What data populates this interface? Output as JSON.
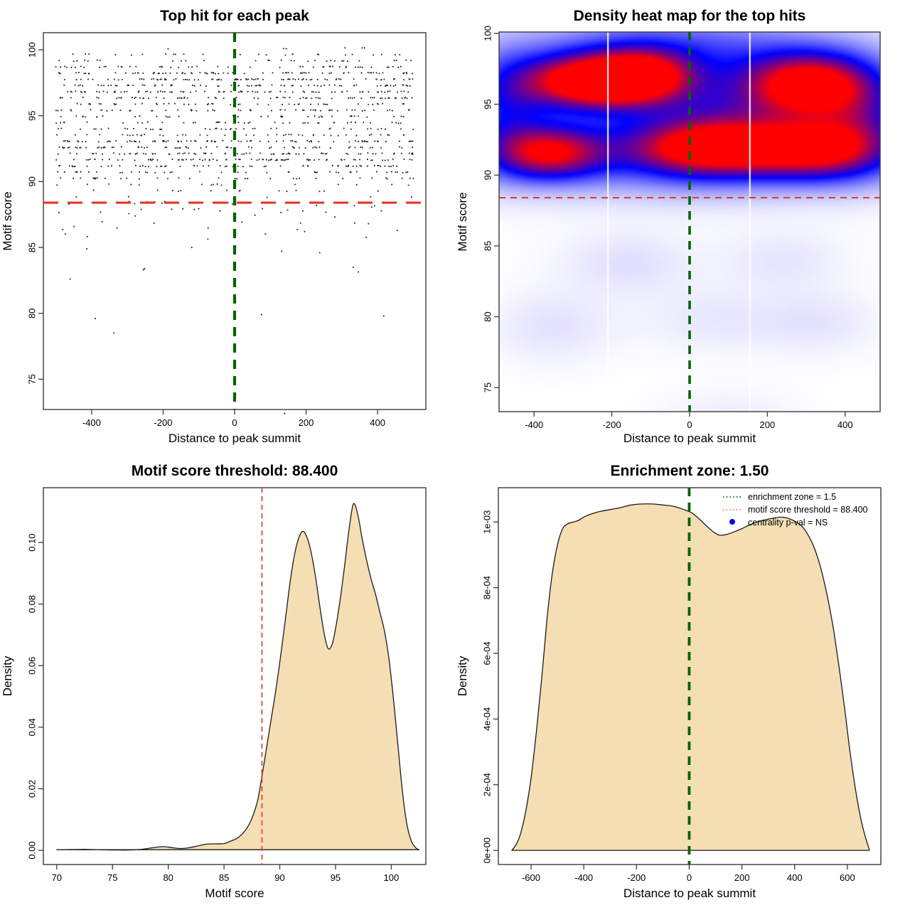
{
  "meta": {
    "background": "#ffffff"
  },
  "chart_data": [
    {
      "type": "scatter",
      "title": "Top hit for each peak",
      "xlabel": "Distance to peak summit",
      "ylabel": "Motif score",
      "x_domain": [
        -535,
        535
      ],
      "y_domain": [
        72.7,
        101.3
      ],
      "x_ticks": {
        "values": [
          -400,
          -200,
          0,
          200,
          400
        ],
        "labels": [
          "-400",
          "-200",
          "0",
          "200",
          "400"
        ]
      },
      "y_ticks": {
        "values": [
          75,
          80,
          85,
          90,
          95,
          100
        ],
        "labels": [
          "75",
          "80",
          "85",
          "90",
          "95",
          "100"
        ]
      },
      "point_color": "#141414",
      "threshold_line": {
        "orientation": "horizontal",
        "value": 88.4,
        "color": "#e8352b",
        "dash": [
          21,
          13
        ],
        "width": 3.2
      },
      "summit_line": {
        "orientation": "vertical",
        "value": 0,
        "color": "#006400",
        "dash": [
          13,
          10
        ],
        "width": 4.2
      },
      "points": {
        "seed": 1337421,
        "n_main": 1260,
        "x_range": [
          -500,
          500
        ],
        "mixture": {
          "weights": [
            0.46,
            0.54
          ],
          "means": [
            92.0,
            97.1
          ],
          "sds": [
            1.35,
            1.75
          ]
        },
        "score_range": [
          88.6,
          100.0
        ],
        "quantize_step": 0.47,
        "jitter": 0.045,
        "n_below_threshold": 55,
        "below_threshold_mean_drop": 1.1,
        "outliers": [
          [
            140,
            72.4
          ],
          [
            -338,
            78.5
          ],
          [
            -390,
            79.6
          ],
          [
            417,
            79.8
          ],
          [
            75,
            79.9
          ],
          [
            -460,
            82.6
          ],
          [
            238,
            84.6
          ],
          [
            332,
            83.5
          ],
          [
            -255,
            83.3
          ],
          [
            196,
            86.2
          ],
          [
            -120,
            85.0
          ],
          [
            455,
            86.3
          ]
        ]
      }
    },
    {
      "type": "heatmap",
      "title": "Density heat map for the top hits",
      "xlabel": "Distance to peak summit",
      "ylabel": "Motif score",
      "x_domain": [
        -490,
        490
      ],
      "y_domain": [
        73.3,
        100.1
      ],
      "x_ticks": {
        "values": [
          -400,
          -200,
          0,
          200,
          400
        ],
        "labels": [
          "-400",
          "-200",
          "0",
          "200",
          "400"
        ]
      },
      "y_ticks": {
        "values": [
          75,
          80,
          85,
          90,
          95,
          100
        ],
        "labels": [
          "75",
          "80",
          "85",
          "90",
          "95",
          "100"
        ]
      },
      "colormap": [
        "#ffffff",
        "#0000ff",
        "#ff0000"
      ],
      "white_lines": [
        -210,
        155
      ],
      "threshold_line": {
        "orientation": "horizontal",
        "value": 88.4,
        "color": "#e03530",
        "dash": [
          9,
          7
        ],
        "width": 2
      },
      "summit_line": {
        "orientation": "vertical",
        "value": 0,
        "color": "#006400",
        "dash": [
          12,
          9
        ],
        "width": 3.6
      },
      "blobs": [
        {
          "x": -250,
          "y": 96.6,
          "sx": 120,
          "sy": 1.25,
          "a": 1.05
        },
        {
          "x": -120,
          "y": 97.1,
          "sx": 85,
          "sy": 1.25,
          "a": 0.6
        },
        {
          "x": 305,
          "y": 96.4,
          "sx": 105,
          "sy": 1.45,
          "a": 0.95
        },
        {
          "x": 60,
          "y": 91.9,
          "sx": 140,
          "sy": 1.3,
          "a": 0.9
        },
        {
          "x": -360,
          "y": 91.6,
          "sx": 95,
          "sy": 1.25,
          "a": 0.8
        },
        {
          "x": 330,
          "y": 91.8,
          "sx": 115,
          "sy": 1.35,
          "a": 0.75
        },
        {
          "x": -60,
          "y": 96.3,
          "sx": 330,
          "sy": 2.0,
          "a": 0.3
        },
        {
          "x": 0,
          "y": 91.3,
          "sx": 380,
          "sy": 1.9,
          "a": 0.32
        },
        {
          "x": -30,
          "y": 99.2,
          "sx": 300,
          "sy": 1.7,
          "a": 0.25
        },
        {
          "x": 440,
          "y": 94.2,
          "sx": 90,
          "sy": 2.4,
          "a": 0.38
        },
        {
          "x": -470,
          "y": 94.5,
          "sx": 70,
          "sy": 2.6,
          "a": 0.3
        },
        {
          "x": 150,
          "y": 94.0,
          "sx": 180,
          "sy": 1.8,
          "a": 0.25
        },
        {
          "x": -160,
          "y": 83.8,
          "sx": 120,
          "sy": 1.6,
          "a": 0.06
        },
        {
          "x": 240,
          "y": 84.0,
          "sx": 110,
          "sy": 1.5,
          "a": 0.05
        },
        {
          "x": -350,
          "y": 79.3,
          "sx": 110,
          "sy": 1.8,
          "a": 0.055
        },
        {
          "x": 60,
          "y": 79.8,
          "sx": 130,
          "sy": 1.6,
          "a": 0.045
        },
        {
          "x": 330,
          "y": 79.6,
          "sx": 110,
          "sy": 1.6,
          "a": 0.05
        },
        {
          "x": 100,
          "y": 72.8,
          "sx": 120,
          "sy": 1.5,
          "a": 0.035
        }
      ]
    },
    {
      "type": "density",
      "title": "Motif score threshold: 88.400",
      "xlabel": "Motif score",
      "ylabel": "Density",
      "x_domain": [
        68.8,
        103.1
      ],
      "y_domain": [
        -0.0046,
        0.1178
      ],
      "x_ticks": {
        "values": [
          70,
          75,
          80,
          85,
          90,
          95,
          100
        ],
        "labels": [
          "70",
          "75",
          "80",
          "85",
          "90",
          "95",
          "100"
        ]
      },
      "y_ticks": {
        "values": [
          0,
          0.02,
          0.04,
          0.06,
          0.08,
          0.1
        ],
        "labels": [
          "0.00",
          "0.02",
          "0.04",
          "0.06",
          "0.08",
          "0.10"
        ]
      },
      "fill": "#f5deb3",
      "stroke": "#1a1a1a",
      "vline": {
        "value": 88.4,
        "color": "#d8493f",
        "dash": [
          7,
          5
        ],
        "width": 1.8
      },
      "curve": [
        [
          70,
          0.0002
        ],
        [
          71,
          0.00025
        ],
        [
          72,
          0.0003
        ],
        [
          72.5,
          0.00032
        ],
        [
          73.5,
          0.00022
        ],
        [
          75,
          0.00012
        ],
        [
          76.5,
          0.0001
        ],
        [
          77.5,
          0.0003
        ],
        [
          78.5,
          0.0008
        ],
        [
          79.5,
          0.0012
        ],
        [
          80.3,
          0.0009
        ],
        [
          81,
          0.0006
        ],
        [
          81.8,
          0.0008
        ],
        [
          82.6,
          0.0014
        ],
        [
          83.4,
          0.002
        ],
        [
          84.2,
          0.0021
        ],
        [
          85,
          0.0022
        ],
        [
          85.6,
          0.003
        ],
        [
          86.2,
          0.004
        ],
        [
          86.8,
          0.006
        ],
        [
          87.4,
          0.0095
        ],
        [
          88,
          0.016
        ],
        [
          88.4,
          0.024
        ],
        [
          88.8,
          0.033
        ],
        [
          89.2,
          0.042
        ],
        [
          89.6,
          0.051
        ],
        [
          90,
          0.061
        ],
        [
          90.5,
          0.075
        ],
        [
          91,
          0.089
        ],
        [
          91.5,
          0.099
        ],
        [
          92,
          0.1035
        ],
        [
          92.4,
          0.102
        ],
        [
          92.8,
          0.097
        ],
        [
          93.2,
          0.089
        ],
        [
          93.6,
          0.079
        ],
        [
          94,
          0.07
        ],
        [
          94.35,
          0.0655
        ],
        [
          94.7,
          0.067
        ],
        [
          95,
          0.072
        ],
        [
          95.4,
          0.081
        ],
        [
          95.8,
          0.092
        ],
        [
          96.2,
          0.104
        ],
        [
          96.6,
          0.1125
        ],
        [
          97,
          0.109
        ],
        [
          97.4,
          0.101
        ],
        [
          97.8,
          0.094
        ],
        [
          98.2,
          0.088
        ],
        [
          98.6,
          0.083
        ],
        [
          99,
          0.077
        ],
        [
          99.4,
          0.071
        ],
        [
          99.8,
          0.062
        ],
        [
          100.2,
          0.049
        ],
        [
          100.6,
          0.034
        ],
        [
          101,
          0.019
        ],
        [
          101.4,
          0.0085
        ],
        [
          101.8,
          0.003
        ],
        [
          102.2,
          0.0008
        ],
        [
          102.5,
          0.0002
        ]
      ]
    },
    {
      "type": "density",
      "title": "Enrichment zone: 1.50",
      "xlabel": "Distance to peak summit",
      "ylabel": "Density",
      "x_domain": [
        -724,
        727
      ],
      "y_domain": [
        -4.3e-05,
        0.0011046
      ],
      "x_ticks": {
        "values": [
          -600,
          -400,
          -200,
          0,
          200,
          400,
          600
        ],
        "labels": [
          "-600",
          "-400",
          "-200",
          "0",
          "200",
          "400",
          "600"
        ]
      },
      "y_ticks": {
        "values": [
          0,
          0.0002,
          0.0004,
          0.0006,
          0.0008,
          0.001
        ],
        "labels": [
          "0e+00",
          "2e-04",
          "4e-04",
          "6e-04",
          "8e-04",
          "1e-03"
        ]
      },
      "fill": "#f5deb3",
      "stroke": "#1a1a1a",
      "vline": {
        "value": 0,
        "color": "#006400",
        "dash": [
          12,
          9
        ],
        "width": 3.8
      },
      "curve": [
        [
          -673,
          0
        ],
        [
          -655,
          2e-05
        ],
        [
          -640,
          5e-05
        ],
        [
          -620,
          0.00012
        ],
        [
          -600,
          0.00022
        ],
        [
          -580,
          0.00036
        ],
        [
          -560,
          0.00052
        ],
        [
          -540,
          0.0007
        ],
        [
          -520,
          0.00084
        ],
        [
          -500,
          0.00093
        ],
        [
          -480,
          0.00098
        ],
        [
          -460,
          0.000995
        ],
        [
          -440,
          0.001
        ],
        [
          -420,
          0.001005
        ],
        [
          -400,
          0.001015
        ],
        [
          -370,
          0.001025
        ],
        [
          -340,
          0.001032
        ],
        [
          -300,
          0.001038
        ],
        [
          -260,
          0.001044
        ],
        [
          -220,
          0.001052
        ],
        [
          -180,
          0.001055
        ],
        [
          -140,
          0.001055
        ],
        [
          -100,
          0.001052
        ],
        [
          -60,
          0.001048
        ],
        [
          -20,
          0.001038
        ],
        [
          10,
          0.001028
        ],
        [
          40,
          0.001008
        ],
        [
          70,
          0.000985
        ],
        [
          95,
          0.000968
        ],
        [
          115,
          0.00096
        ],
        [
          140,
          0.000962
        ],
        [
          170,
          0.00097
        ],
        [
          200,
          0.00098
        ],
        [
          240,
          0.000995
        ],
        [
          280,
          0.001005
        ],
        [
          320,
          0.001012
        ],
        [
          350,
          0.001015
        ],
        [
          380,
          0.00101
        ],
        [
          410,
          0.000998
        ],
        [
          430,
          0.000985
        ],
        [
          450,
          0.000962
        ],
        [
          470,
          0.00093
        ],
        [
          490,
          0.000885
        ],
        [
          510,
          0.000825
        ],
        [
          530,
          0.00075
        ],
        [
          550,
          0.00066
        ],
        [
          570,
          0.00055
        ],
        [
          590,
          0.00043
        ],
        [
          610,
          0.0003
        ],
        [
          630,
          0.00019
        ],
        [
          650,
          0.0001
        ],
        [
          665,
          5e-05
        ],
        [
          680,
          1e-05
        ],
        [
          683,
          0
        ]
      ],
      "legend": {
        "items": [
          {
            "label": "enrichment zone = 1.5",
            "marker": "dotted-line",
            "color": "#006400"
          },
          {
            "label": "motif score threshold = 88.400",
            "marker": "dotted-line",
            "color": "#e8736a"
          },
          {
            "label": "centrality p-val = NS",
            "marker": "point",
            "color": "#0000ee"
          }
        ]
      }
    }
  ]
}
